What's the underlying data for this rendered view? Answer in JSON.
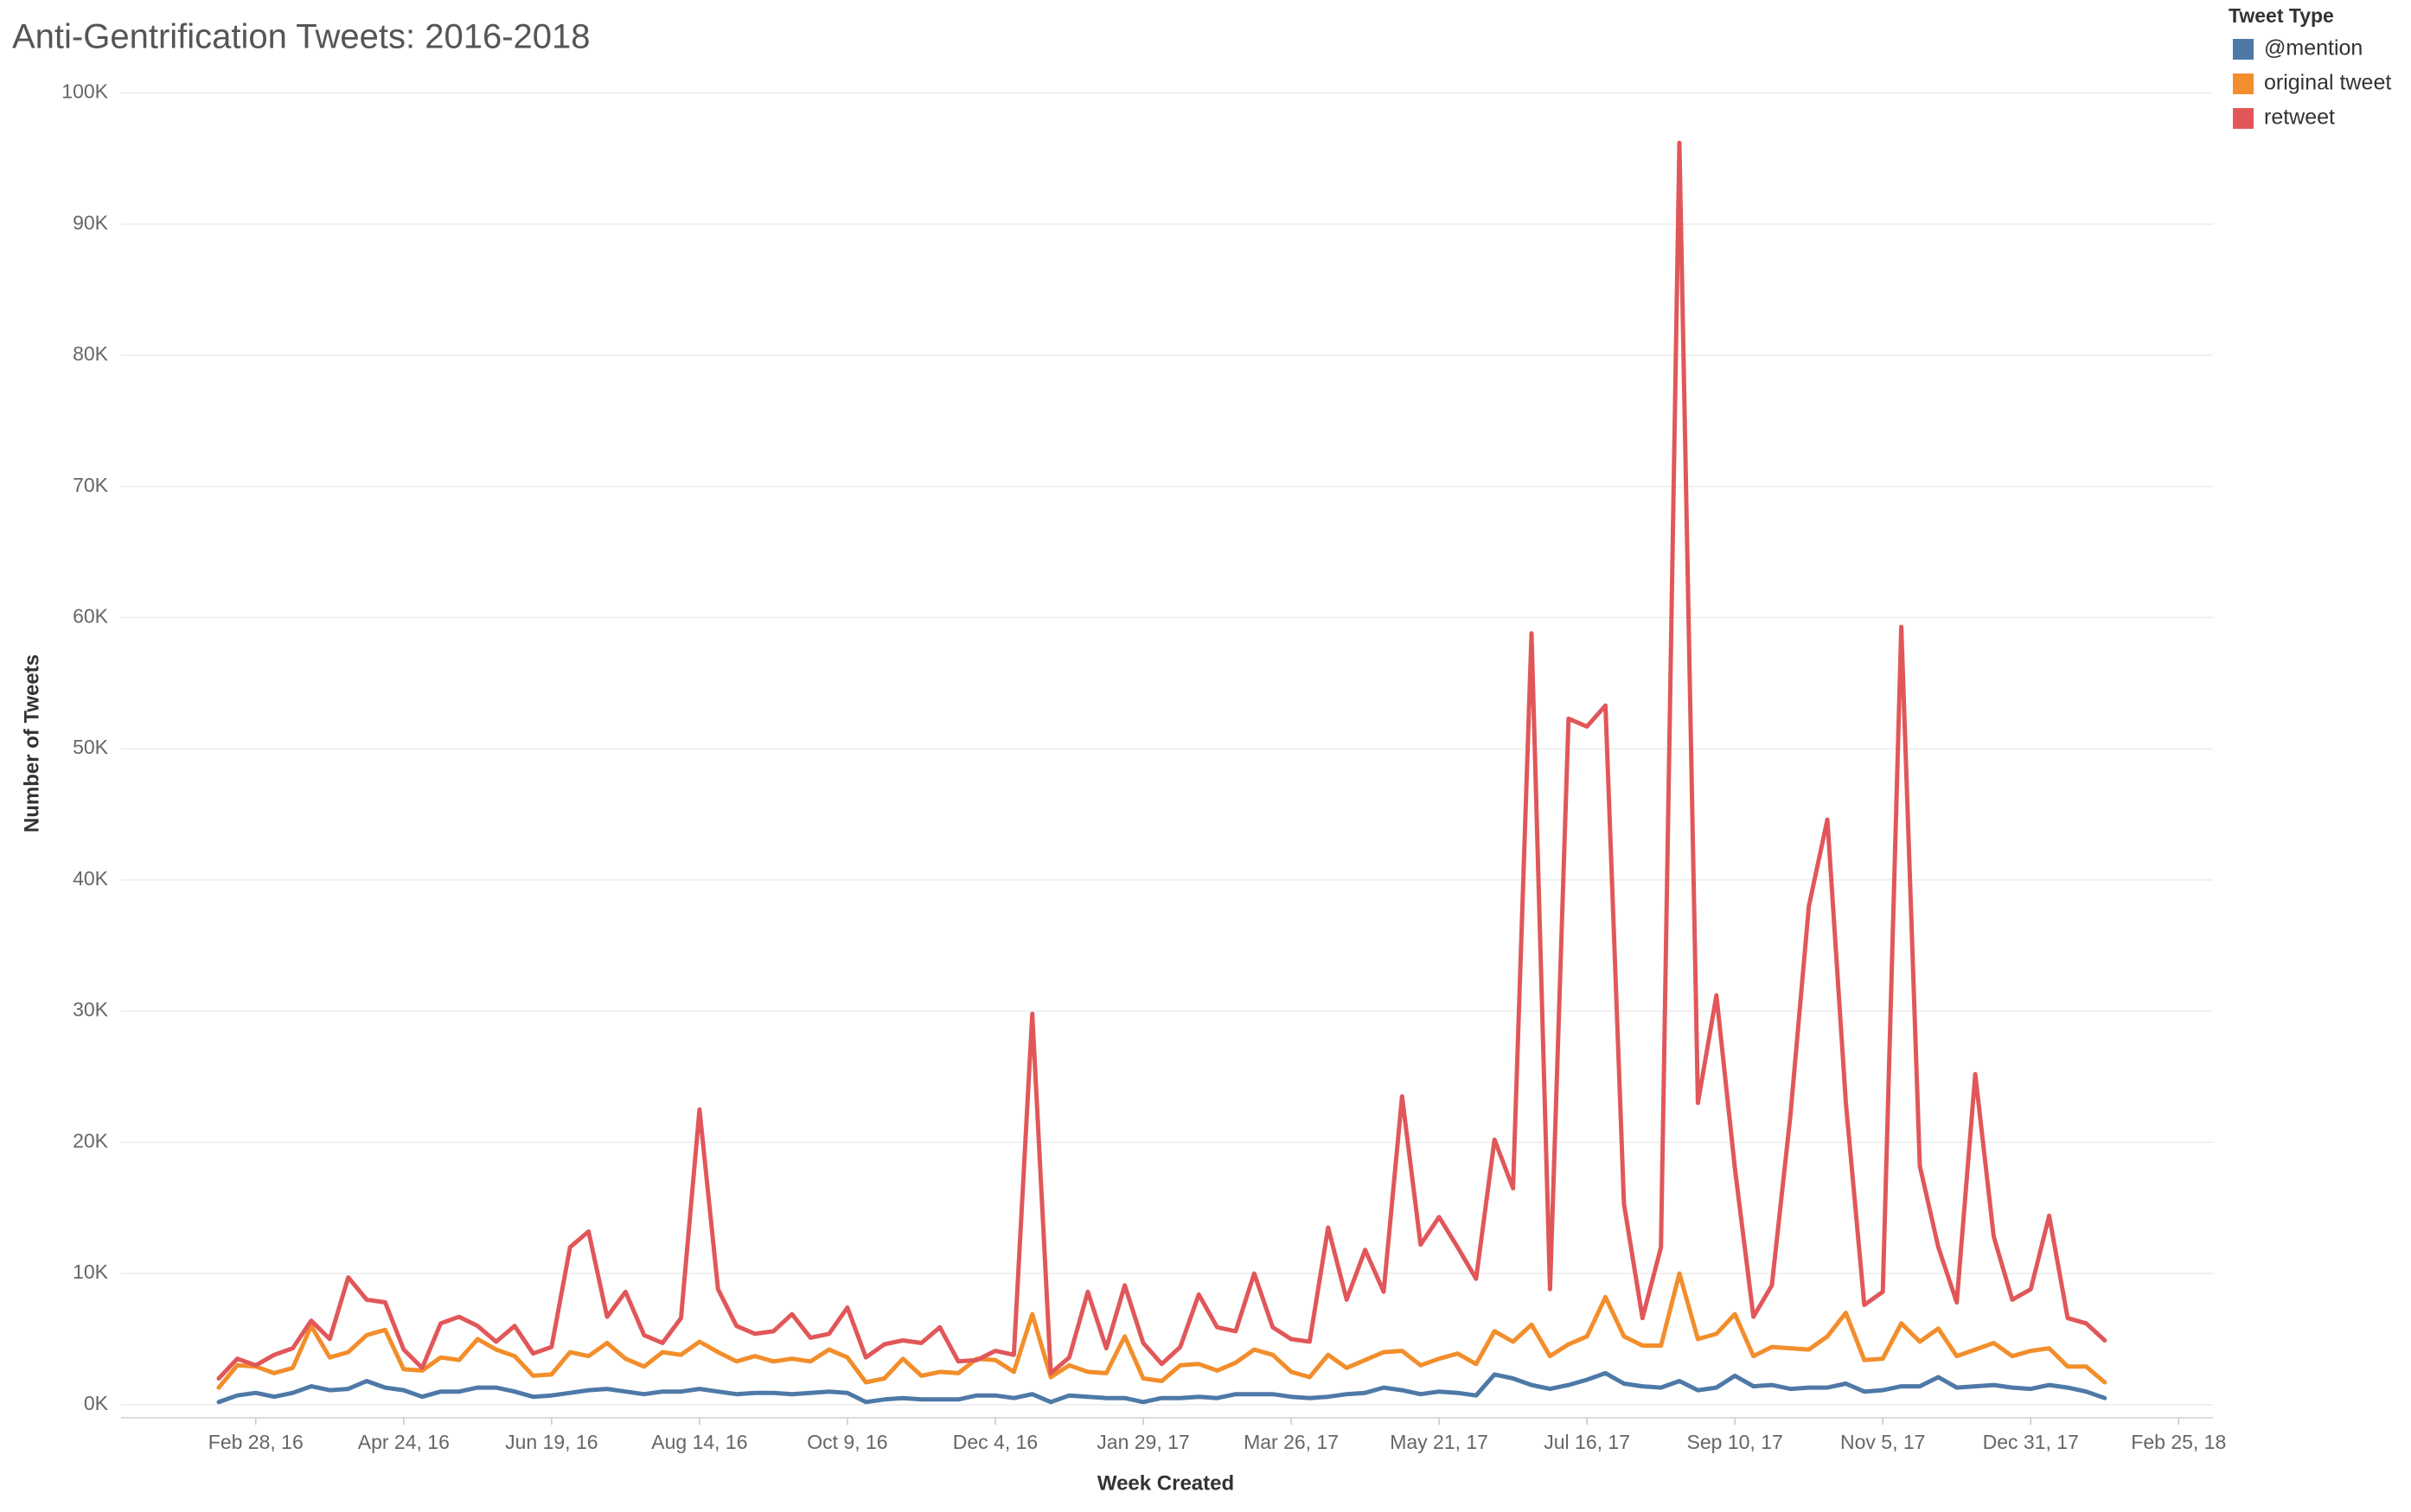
{
  "chart_data": {
    "type": "line",
    "title": "Anti-Gentrification Tweets: 2016-2018",
    "x_label": "Week Created",
    "y_label": "Number of Tweets",
    "legend_title": "Tweet Type",
    "legend_position": "top-right",
    "grid": true,
    "x": [
      "2016-02-14",
      "2016-02-21",
      "2016-02-28",
      "2016-03-06",
      "2016-03-13",
      "2016-03-20",
      "2016-03-27",
      "2016-04-03",
      "2016-04-10",
      "2016-04-17",
      "2016-04-24",
      "2016-05-01",
      "2016-05-08",
      "2016-05-15",
      "2016-05-22",
      "2016-05-29",
      "2016-06-05",
      "2016-06-12",
      "2016-06-19",
      "2016-06-26",
      "2016-07-03",
      "2016-07-10",
      "2016-07-17",
      "2016-07-24",
      "2016-07-31",
      "2016-08-07",
      "2016-08-14",
      "2016-08-21",
      "2016-08-28",
      "2016-09-04",
      "2016-09-11",
      "2016-09-18",
      "2016-09-25",
      "2016-10-02",
      "2016-10-09",
      "2016-10-16",
      "2016-10-23",
      "2016-10-30",
      "2016-11-06",
      "2016-11-13",
      "2016-11-20",
      "2016-11-27",
      "2016-12-04",
      "2016-12-11",
      "2016-12-18",
      "2016-12-25",
      "2017-01-01",
      "2017-01-08",
      "2017-01-15",
      "2017-01-22",
      "2017-01-29",
      "2017-02-05",
      "2017-02-12",
      "2017-02-19",
      "2017-02-26",
      "2017-03-05",
      "2017-03-12",
      "2017-03-19",
      "2017-03-26",
      "2017-04-02",
      "2017-04-09",
      "2017-04-16",
      "2017-04-23",
      "2017-04-30",
      "2017-05-07",
      "2017-05-14",
      "2017-05-21",
      "2017-05-28",
      "2017-06-04",
      "2017-06-11",
      "2017-06-18",
      "2017-06-25",
      "2017-07-02",
      "2017-07-09",
      "2017-07-16",
      "2017-07-23",
      "2017-07-30",
      "2017-08-06",
      "2017-08-13",
      "2017-08-20",
      "2017-08-27",
      "2017-09-03",
      "2017-09-10",
      "2017-09-17",
      "2017-09-24",
      "2017-10-01",
      "2017-10-08",
      "2017-10-15",
      "2017-10-22",
      "2017-10-29",
      "2017-11-05",
      "2017-11-12",
      "2017-11-19",
      "2017-11-26",
      "2017-12-03",
      "2017-12-10",
      "2017-12-17",
      "2017-12-24",
      "2017-12-31",
      "2018-01-07",
      "2018-01-14",
      "2018-01-21",
      "2018-01-28"
    ],
    "xlim": [
      "2016-01-08",
      "2018-03-10"
    ],
    "xticks": [
      {
        "value": "2016-02-28",
        "label": "Feb 28, 16"
      },
      {
        "value": "2016-04-24",
        "label": "Apr 24, 16"
      },
      {
        "value": "2016-06-19",
        "label": "Jun 19, 16"
      },
      {
        "value": "2016-08-14",
        "label": "Aug 14, 16"
      },
      {
        "value": "2016-10-09",
        "label": "Oct 9, 16"
      },
      {
        "value": "2016-12-04",
        "label": "Dec 4, 16"
      },
      {
        "value": "2017-01-29",
        "label": "Jan 29, 17"
      },
      {
        "value": "2017-03-26",
        "label": "Mar 26, 17"
      },
      {
        "value": "2017-05-21",
        "label": "May 21, 17"
      },
      {
        "value": "2017-07-16",
        "label": "Jul 16, 17"
      },
      {
        "value": "2017-09-10",
        "label": "Sep 10, 17"
      },
      {
        "value": "2017-11-05",
        "label": "Nov 5, 17"
      },
      {
        "value": "2017-12-31",
        "label": "Dec 31, 17"
      },
      {
        "value": "2018-02-25",
        "label": "Feb 25, 18"
      }
    ],
    "ylim": [
      -1000,
      100000
    ],
    "yticks": [
      {
        "value": 0,
        "label": "0K"
      },
      {
        "value": 10000,
        "label": "10K"
      },
      {
        "value": 20000,
        "label": "20K"
      },
      {
        "value": 30000,
        "label": "30K"
      },
      {
        "value": 40000,
        "label": "40K"
      },
      {
        "value": 50000,
        "label": "50K"
      },
      {
        "value": 60000,
        "label": "60K"
      },
      {
        "value": 70000,
        "label": "70K"
      },
      {
        "value": 80000,
        "label": "80K"
      },
      {
        "value": 90000,
        "label": "90K"
      },
      {
        "value": 100000,
        "label": "100K"
      }
    ],
    "series": [
      {
        "name": "@mention",
        "color": "#4e79a7",
        "values": [
          200,
          700,
          900,
          600,
          900,
          1400,
          1100,
          1200,
          1800,
          1300,
          1100,
          600,
          1000,
          1000,
          1300,
          1300,
          1000,
          600,
          700,
          900,
          1100,
          1200,
          1000,
          800,
          1000,
          1000,
          1200,
          1000,
          800,
          900,
          900,
          800,
          900,
          1000,
          900,
          200,
          400,
          500,
          400,
          400,
          400,
          700,
          700,
          500,
          800,
          200,
          700,
          600,
          500,
          500,
          200,
          500,
          500,
          600,
          500,
          800,
          800,
          800,
          600,
          500,
          600,
          800,
          900,
          1300,
          1100,
          800,
          1000,
          900,
          700,
          2300,
          2000,
          1500,
          1200,
          1500,
          1900,
          2400,
          1600,
          1400,
          1300,
          1800,
          1100,
          1300,
          2200,
          1400,
          1500,
          1200,
          1300,
          1300,
          1600,
          1000,
          1100,
          1400,
          1400,
          2100,
          1300,
          1400,
          1500,
          1300,
          1200,
          1500,
          1300,
          1000,
          500
        ]
      },
      {
        "name": "original tweet",
        "color": "#f28e2b",
        "values": [
          1300,
          3000,
          2900,
          2400,
          2800,
          6000,
          3600,
          4000,
          5300,
          5700,
          2700,
          2600,
          3600,
          3400,
          5000,
          4200,
          3700,
          2200,
          2300,
          4000,
          3700,
          4700,
          3500,
          2900,
          4000,
          3800,
          4800,
          4000,
          3300,
          3700,
          3300,
          3500,
          3300,
          4200,
          3600,
          1700,
          2000,
          3500,
          2200,
          2500,
          2400,
          3500,
          3400,
          2500,
          6900,
          2100,
          3000,
          2500,
          2400,
          5200,
          2000,
          1800,
          3000,
          3100,
          2600,
          3200,
          4200,
          3800,
          2500,
          2100,
          3800,
          2800,
          3400,
          4000,
          4100,
          3000,
          3500,
          3900,
          3100,
          5600,
          4800,
          6100,
          3700,
          4600,
          5200,
          8200,
          5200,
          4500,
          4500,
          10000,
          5000,
          5400,
          6900,
          3700,
          4400,
          4300,
          4200,
          5200,
          7000,
          3400,
          3500,
          6200,
          4800,
          5800,
          3700,
          4200,
          4700,
          3700,
          4100,
          4300,
          2900,
          2900,
          1700
        ]
      },
      {
        "name": "retweet",
        "color": "#e15759",
        "values": [
          2000,
          3500,
          3000,
          3800,
          4300,
          6400,
          5000,
          9700,
          8000,
          7800,
          4200,
          2800,
          6200,
          6700,
          6000,
          4800,
          6000,
          3900,
          4400,
          12000,
          13200,
          6700,
          8600,
          5300,
          4700,
          6600,
          22500,
          8800,
          6000,
          5400,
          5600,
          6900,
          5100,
          5400,
          7400,
          3600,
          4600,
          4900,
          4700,
          5900,
          3300,
          3400,
          4100,
          3800,
          29800,
          2400,
          3600,
          8600,
          4300,
          9100,
          4700,
          3100,
          4400,
          8400,
          5900,
          5600,
          10000,
          5900,
          5000,
          4800,
          13500,
          8000,
          11800,
          8600,
          23500,
          12200,
          14300,
          12000,
          9600,
          20200,
          16500,
          58800,
          8800,
          52300,
          51700,
          53300,
          15300,
          6600,
          12000,
          96200,
          23000,
          31200,
          18000,
          6700,
          9100,
          22000,
          38000,
          44600,
          23000,
          7600,
          8600,
          59300,
          18200,
          12000,
          7800,
          25200,
          12800,
          8000,
          8800,
          14400,
          6600,
          6200,
          4900
        ]
      }
    ]
  }
}
